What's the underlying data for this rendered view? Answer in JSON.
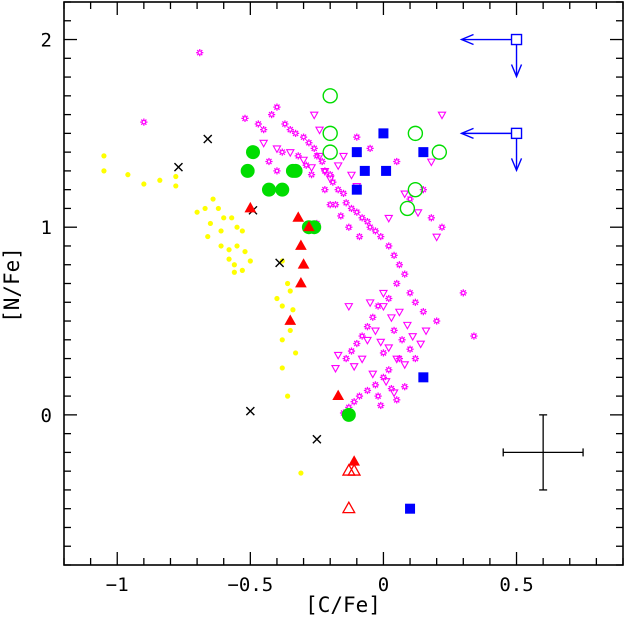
{
  "chart_data": {
    "type": "scatter",
    "xlabel": "[C/Fe]",
    "ylabel": "[N/Fe]",
    "xlim": [
      -1.2,
      0.9
    ],
    "ylim": [
      -0.8,
      2.2
    ],
    "xticks": [
      -1,
      -0.5,
      0,
      0.5
    ],
    "xtick_labels": [
      "−1",
      "−0.5",
      "0",
      "0.5"
    ],
    "yticks": [
      0,
      1,
      2
    ],
    "ytick_labels": [
      "0",
      "1",
      "2"
    ],
    "grid": false,
    "colors": {
      "yellow": "#ffff00",
      "magenta": "#ff00ff",
      "black": "#000000",
      "green": "#00dd00",
      "red": "#ff0000",
      "blue": "#0000ff"
    },
    "error_bar": {
      "x": 0.6,
      "y": -0.2,
      "xerr": 0.15,
      "yerr": 0.2
    },
    "upper_limits": [
      {
        "x": 0.5,
        "y": 2.0
      },
      {
        "x": 0.5,
        "y": 1.5
      }
    ],
    "series": [
      {
        "marker": "dot",
        "color": "yellow",
        "points": [
          [
            -1.05,
            1.38
          ],
          [
            -1.05,
            1.3
          ],
          [
            -0.96,
            1.28
          ],
          [
            -0.9,
            1.23
          ],
          [
            -0.84,
            1.25
          ],
          [
            -0.78,
            1.27
          ],
          [
            -0.78,
            1.22
          ],
          [
            -0.7,
            1.08
          ],
          [
            -0.67,
            1.1
          ],
          [
            -0.64,
            1.15
          ],
          [
            -0.62,
            1.1
          ],
          [
            -0.6,
            1.05
          ],
          [
            -0.65,
            1.02
          ],
          [
            -0.61,
            0.98
          ],
          [
            -0.57,
            1.05
          ],
          [
            -0.55,
            1.0
          ],
          [
            -0.53,
            0.98
          ],
          [
            -0.66,
            0.95
          ],
          [
            -0.61,
            0.9
          ],
          [
            -0.55,
            0.9
          ],
          [
            -0.58,
            0.88
          ],
          [
            -0.52,
            0.87
          ],
          [
            -0.58,
            0.83
          ],
          [
            -0.56,
            0.8
          ],
          [
            -0.5,
            0.82
          ],
          [
            -0.56,
            0.76
          ],
          [
            -0.53,
            0.77
          ],
          [
            -0.38,
            0.82
          ],
          [
            -0.36,
            0.7
          ],
          [
            -0.35,
            0.66
          ],
          [
            -0.4,
            0.62
          ],
          [
            -0.38,
            0.58
          ],
          [
            -0.34,
            0.56
          ],
          [
            -0.35,
            0.45
          ],
          [
            -0.38,
            0.4
          ],
          [
            -0.33,
            0.33
          ],
          [
            -0.38,
            0.25
          ],
          [
            -0.36,
            0.1
          ],
          [
            -0.31,
            -0.31
          ]
        ]
      },
      {
        "marker": "star",
        "color": "magenta",
        "points": [
          [
            -0.9,
            1.56
          ],
          [
            -0.69,
            1.93
          ],
          [
            -0.52,
            1.58
          ],
          [
            -0.47,
            1.55
          ],
          [
            -0.45,
            1.52
          ],
          [
            -0.42,
            1.6
          ],
          [
            -0.4,
            1.64
          ],
          [
            -0.37,
            1.55
          ],
          [
            -0.35,
            1.52
          ],
          [
            -0.33,
            1.5
          ],
          [
            -0.3,
            1.48
          ],
          [
            -0.28,
            1.45
          ],
          [
            -0.26,
            1.42
          ],
          [
            -0.25,
            1.38
          ],
          [
            -0.23,
            1.35
          ],
          [
            -0.22,
            1.3
          ],
          [
            -0.2,
            1.28
          ],
          [
            -0.19,
            1.24
          ],
          [
            -0.17,
            1.2
          ],
          [
            -0.15,
            1.18
          ],
          [
            -0.14,
            1.13
          ],
          [
            -0.12,
            1.1
          ],
          [
            -0.1,
            1.08
          ],
          [
            -0.08,
            1.05
          ],
          [
            -0.06,
            1.03
          ],
          [
            -0.05,
            1.0
          ],
          [
            -0.03,
            0.98
          ],
          [
            -0.01,
            0.95
          ],
          [
            0.02,
            0.9
          ],
          [
            0.04,
            0.85
          ],
          [
            0.06,
            0.8
          ],
          [
            0.08,
            0.75
          ],
          [
            -0.43,
            1.35
          ],
          [
            -0.4,
            1.3
          ],
          [
            -0.38,
            1.4
          ],
          [
            -0.32,
            1.38
          ],
          [
            -0.29,
            1.33
          ],
          [
            -0.27,
            1.28
          ],
          [
            -0.22,
            1.2
          ],
          [
            -0.18,
            1.12
          ],
          [
            -0.16,
            1.06
          ],
          [
            -0.13,
            1.0
          ],
          [
            -0.09,
            0.95
          ],
          [
            0.1,
            0.65
          ],
          [
            0.12,
            0.6
          ],
          [
            0.15,
            0.55
          ],
          [
            0.2,
            0.5
          ],
          [
            0.3,
            0.65
          ],
          [
            0.34,
            0.42
          ],
          [
            0.05,
            0.7
          ],
          [
            0.02,
            0.62
          ],
          [
            -0.02,
            0.58
          ],
          [
            -0.04,
            0.52
          ],
          [
            -0.06,
            0.47
          ],
          [
            -0.08,
            0.42
          ],
          [
            -0.1,
            0.38
          ],
          [
            -0.12,
            0.34
          ],
          [
            -0.14,
            0.3
          ],
          [
            0.04,
            0.45
          ],
          [
            0.07,
            0.4
          ],
          [
            0.1,
            0.35
          ],
          [
            0.06,
            0.3
          ],
          [
            0.02,
            0.24
          ],
          [
            0.0,
            0.2
          ],
          [
            -0.03,
            0.16
          ],
          [
            -0.06,
            0.13
          ],
          [
            -0.09,
            0.1
          ],
          [
            -0.11,
            0.07
          ],
          [
            -0.13,
            0.04
          ],
          [
            -0.15,
            0.01
          ],
          [
            0.03,
            0.14
          ],
          [
            0.05,
            0.08
          ],
          [
            0.08,
            0.15
          ],
          [
            0.12,
            0.3
          ],
          [
            -0.02,
            0.1
          ],
          [
            0.0,
            0.33
          ],
          [
            -0.1,
            1.48
          ],
          [
            -0.05,
            1.42
          ],
          [
            0.05,
            1.35
          ],
          [
            0.1,
            1.15
          ],
          [
            0.15,
            1.2
          ],
          [
            0.18,
            1.05
          ],
          [
            0.22,
            1.0
          ],
          [
            -0.25,
            1.02
          ],
          [
            -0.2,
            1.12
          ],
          [
            -0.01,
            0.05
          ]
        ]
      },
      {
        "marker": "triangle-down-open",
        "color": "magenta",
        "points": [
          [
            -0.45,
            1.45
          ],
          [
            -0.4,
            1.42
          ],
          [
            -0.35,
            1.4
          ],
          [
            -0.3,
            1.36
          ],
          [
            -0.27,
            1.32
          ],
          [
            -0.24,
            1.38
          ],
          [
            -0.22,
            1.3
          ],
          [
            -0.2,
            1.26
          ],
          [
            -0.17,
            1.33
          ],
          [
            -0.24,
            1.52
          ],
          [
            -0.26,
            1.6
          ],
          [
            -0.15,
            1.38
          ],
          [
            -0.1,
            1.22
          ],
          [
            -0.12,
            1.28
          ],
          [
            0.02,
            1.05
          ],
          [
            0.08,
            1.18
          ],
          [
            0.13,
            1.08
          ],
          [
            0.18,
            1.35
          ],
          [
            0.22,
            1.6
          ],
          [
            0.2,
            0.95
          ],
          [
            0.0,
            0.58
          ],
          [
            0.03,
            0.52
          ],
          [
            0.06,
            0.55
          ],
          [
            0.09,
            0.48
          ],
          [
            -0.03,
            0.45
          ],
          [
            -0.06,
            0.4
          ],
          [
            -0.01,
            0.39
          ],
          [
            0.02,
            0.36
          ],
          [
            0.05,
            0.3
          ],
          [
            0.08,
            0.27
          ],
          [
            -0.08,
            0.3
          ],
          [
            -0.11,
            0.26
          ],
          [
            -0.04,
            0.22
          ],
          [
            0.01,
            0.18
          ],
          [
            -0.17,
            0.32
          ],
          [
            -0.18,
            0.25
          ],
          [
            0.11,
            0.42
          ],
          [
            0.14,
            0.38
          ],
          [
            -0.05,
            0.6
          ],
          [
            0.0,
            0.65
          ],
          [
            -0.13,
            0.58
          ],
          [
            0.16,
            0.45
          ],
          [
            0.04,
            0.12
          ]
        ]
      },
      {
        "marker": "cross",
        "color": "black",
        "points": [
          [
            -0.77,
            1.32
          ],
          [
            -0.66,
            1.47
          ],
          [
            -0.49,
            1.09
          ],
          [
            -0.39,
            0.81
          ],
          [
            -0.5,
            0.02
          ],
          [
            -0.25,
            -0.13
          ]
        ]
      },
      {
        "marker": "circle-filled",
        "color": "green",
        "points": [
          [
            -0.51,
            1.3
          ],
          [
            -0.49,
            1.4
          ],
          [
            -0.43,
            1.2
          ],
          [
            -0.38,
            1.2
          ],
          [
            -0.34,
            1.3
          ],
          [
            -0.33,
            1.3
          ],
          [
            -0.28,
            1.0
          ],
          [
            -0.26,
            1.0
          ],
          [
            -0.13,
            0.0
          ]
        ]
      },
      {
        "marker": "circle-open",
        "color": "green",
        "points": [
          [
            -0.2,
            1.7
          ],
          [
            -0.2,
            1.5
          ],
          [
            -0.2,
            1.4
          ],
          [
            0.12,
            1.5
          ],
          [
            0.21,
            1.4
          ],
          [
            0.12,
            1.2
          ],
          [
            0.09,
            1.1
          ]
        ]
      },
      {
        "marker": "triangle-filled",
        "color": "red",
        "points": [
          [
            -0.5,
            1.1
          ],
          [
            -0.32,
            1.05
          ],
          [
            -0.28,
            1.0
          ],
          [
            -0.31,
            0.9
          ],
          [
            -0.3,
            0.8
          ],
          [
            -0.31,
            0.7
          ],
          [
            -0.35,
            0.5
          ],
          [
            -0.17,
            0.1
          ],
          [
            -0.11,
            -0.25
          ]
        ]
      },
      {
        "marker": "triangle-open",
        "color": "red",
        "points": [
          [
            -0.11,
            -0.3
          ],
          [
            -0.13,
            -0.3
          ],
          [
            -0.13,
            -0.5
          ]
        ]
      },
      {
        "marker": "square-filled",
        "color": "blue",
        "points": [
          [
            0.0,
            1.5
          ],
          [
            -0.1,
            1.4
          ],
          [
            0.15,
            1.4
          ],
          [
            -0.07,
            1.3
          ],
          [
            0.01,
            1.3
          ],
          [
            -0.1,
            1.2
          ],
          [
            0.15,
            0.2
          ],
          [
            0.1,
            -0.5
          ]
        ]
      }
    ]
  }
}
